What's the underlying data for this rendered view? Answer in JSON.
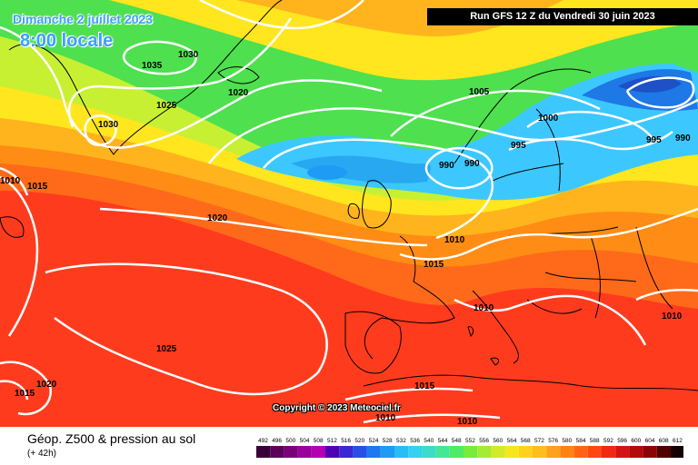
{
  "title": {
    "date": "Dimanche 2 juillet 2023",
    "time": "8:00 locale"
  },
  "run_info": "Run GFS 12 Z du Vendredi 30 juin 2023",
  "copyright": "Copyright © 2023 Meteociel.fr",
  "product": "Géop. Z500 & pression au sol",
  "lead_time": "(+ 42h)",
  "isobar_labels": [
    "1030",
    "1035",
    "1020",
    "1025",
    "1030",
    "1010",
    "1015",
    "1020",
    "1005",
    "1000",
    "995",
    "990",
    "990",
    "995",
    "990",
    "1010",
    "1015",
    "1010",
    "1025",
    "1020",
    "1015",
    "1015",
    "1010",
    "1010",
    "1010"
  ],
  "colors": {
    "tropical_red": "#ff3b1e",
    "orange": "#ff8c14",
    "yellow": "#ffe61e",
    "green": "#4ee04e",
    "cyan": "#3cc8ff",
    "blue": "#1e64e6",
    "isobar": "#ffffff",
    "coast": "#000000"
  },
  "scale": {
    "labels": [
      "492",
      "496",
      "500",
      "504",
      "508",
      "512",
      "516",
      "520",
      "524",
      "528",
      "532",
      "536",
      "540",
      "544",
      "548",
      "552",
      "556",
      "560",
      "564",
      "568",
      "572",
      "576",
      "580",
      "584",
      "588",
      "592",
      "596",
      "600",
      "604",
      "608",
      "612"
    ],
    "colors": [
      "#3a003a",
      "#5a005a",
      "#7a007a",
      "#9a009a",
      "#b400b4",
      "#5000b4",
      "#3c28d2",
      "#2850e6",
      "#1e78f0",
      "#1e9bf5",
      "#28bef5",
      "#32d2f0",
      "#3cdcc8",
      "#46e696",
      "#50eb64",
      "#78eb3c",
      "#a5eb32",
      "#d2eb28",
      "#f5e61e",
      "#ffd21e",
      "#ffbe1e",
      "#ffa01e",
      "#ff8214",
      "#ff6414",
      "#ff4614",
      "#f02814",
      "#d21414",
      "#b40a0a",
      "#8c0505",
      "#500000",
      "#140000"
    ]
  }
}
